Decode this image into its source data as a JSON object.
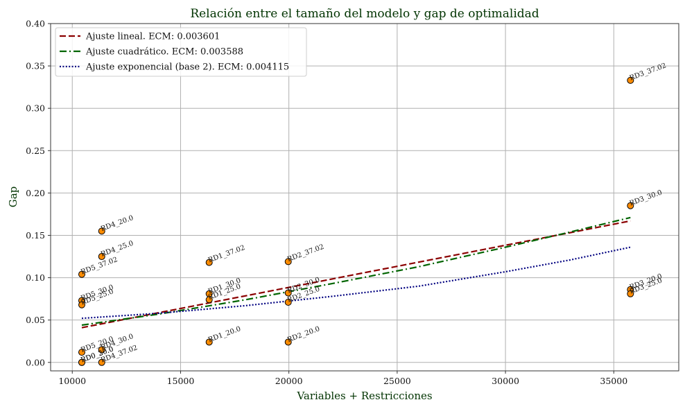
{
  "chart_data": {
    "type": "scatter",
    "title": "Relación entre el tamaño del modelo y gap de optimalidad",
    "xlabel": "Variables + Restricciones",
    "ylabel": "Gap",
    "xlim": [
      9000,
      38000
    ],
    "ylim": [
      -0.01,
      0.4
    ],
    "xticks": [
      10000,
      15000,
      20000,
      25000,
      30000,
      35000
    ],
    "yticks": [
      0.0,
      0.05,
      0.1,
      0.15,
      0.2,
      0.25,
      0.3,
      0.35,
      0.4
    ],
    "xtick_labels": [
      "10000",
      "15000",
      "20000",
      "25000",
      "30000",
      "35000"
    ],
    "ytick_labels": [
      "0.00",
      "0.05",
      "0.10",
      "0.15",
      "0.20",
      "0.25",
      "0.30",
      "0.35",
      "0.40"
    ],
    "grid": true,
    "legend_position": "top-left",
    "marker_color": "#ff8c00",
    "points": [
      {
        "label": "RD3_37.02",
        "x": 35770,
        "y": 0.333
      },
      {
        "label": "RD3_30.0",
        "x": 35770,
        "y": 0.185
      },
      {
        "label": "RD3_20.0",
        "x": 35770,
        "y": 0.086
      },
      {
        "label": "RD3_25.0",
        "x": 35770,
        "y": 0.081
      },
      {
        "label": "RD4_20.0",
        "x": 11360,
        "y": 0.155
      },
      {
        "label": "RD4_25.0",
        "x": 11360,
        "y": 0.125
      },
      {
        "label": "RD5_37.02",
        "x": 10440,
        "y": 0.104
      },
      {
        "label": "RD5_30.0",
        "x": 10440,
        "y": 0.073
      },
      {
        "label": "RD5_25.0",
        "x": 10440,
        "y": 0.068
      },
      {
        "label": "RD1_37.02",
        "x": 16320,
        "y": 0.118
      },
      {
        "label": "RD1_30.0",
        "x": 16320,
        "y": 0.081
      },
      {
        "label": "RD1_25.0",
        "x": 16320,
        "y": 0.074
      },
      {
        "label": "RD1_20.0",
        "x": 16320,
        "y": 0.024
      },
      {
        "label": "RD2_37.02",
        "x": 19970,
        "y": 0.119
      },
      {
        "label": "RD2_30.0",
        "x": 19970,
        "y": 0.082
      },
      {
        "label": "RD2_25.0",
        "x": 19970,
        "y": 0.071
      },
      {
        "label": "RD2_20.0",
        "x": 19970,
        "y": 0.024
      },
      {
        "label": "RD5_20.0",
        "x": 10440,
        "y": 0.012
      },
      {
        "label": "RD4_30.0",
        "x": 11360,
        "y": 0.015
      },
      {
        "label": "RD0_30.0",
        "x": 10440,
        "y": 0.0
      },
      {
        "label": "RD0_20.0",
        "x": 10440,
        "y": 0.0
      },
      {
        "label": "RD4_37.02",
        "x": 11360,
        "y": 0.0
      }
    ],
    "series": [
      {
        "name": "Ajuste lineal. ECM: 0.003601",
        "color": "#8b0000",
        "dash": "dashed",
        "x": [
          10440,
          35770
        ],
        "y": [
          0.041,
          0.167
        ]
      },
      {
        "name": "Ajuste cuadrático. ECM: 0.003588",
        "color": "#006400",
        "dash": "dashdot",
        "x": [
          10440,
          14000,
          18000,
          22000,
          26000,
          30000,
          33000,
          35770
        ],
        "y": [
          0.044,
          0.057,
          0.074,
          0.093,
          0.113,
          0.136,
          0.154,
          0.171
        ]
      },
      {
        "name": "Ajuste exponencial (base 2). ECM: 0.004115",
        "color": "#000080",
        "dash": "dotted",
        "x": [
          10440,
          14000,
          18000,
          22000,
          26000,
          30000,
          33000,
          35770
        ],
        "y": [
          0.052,
          0.058,
          0.067,
          0.078,
          0.09,
          0.107,
          0.121,
          0.136
        ]
      }
    ]
  }
}
